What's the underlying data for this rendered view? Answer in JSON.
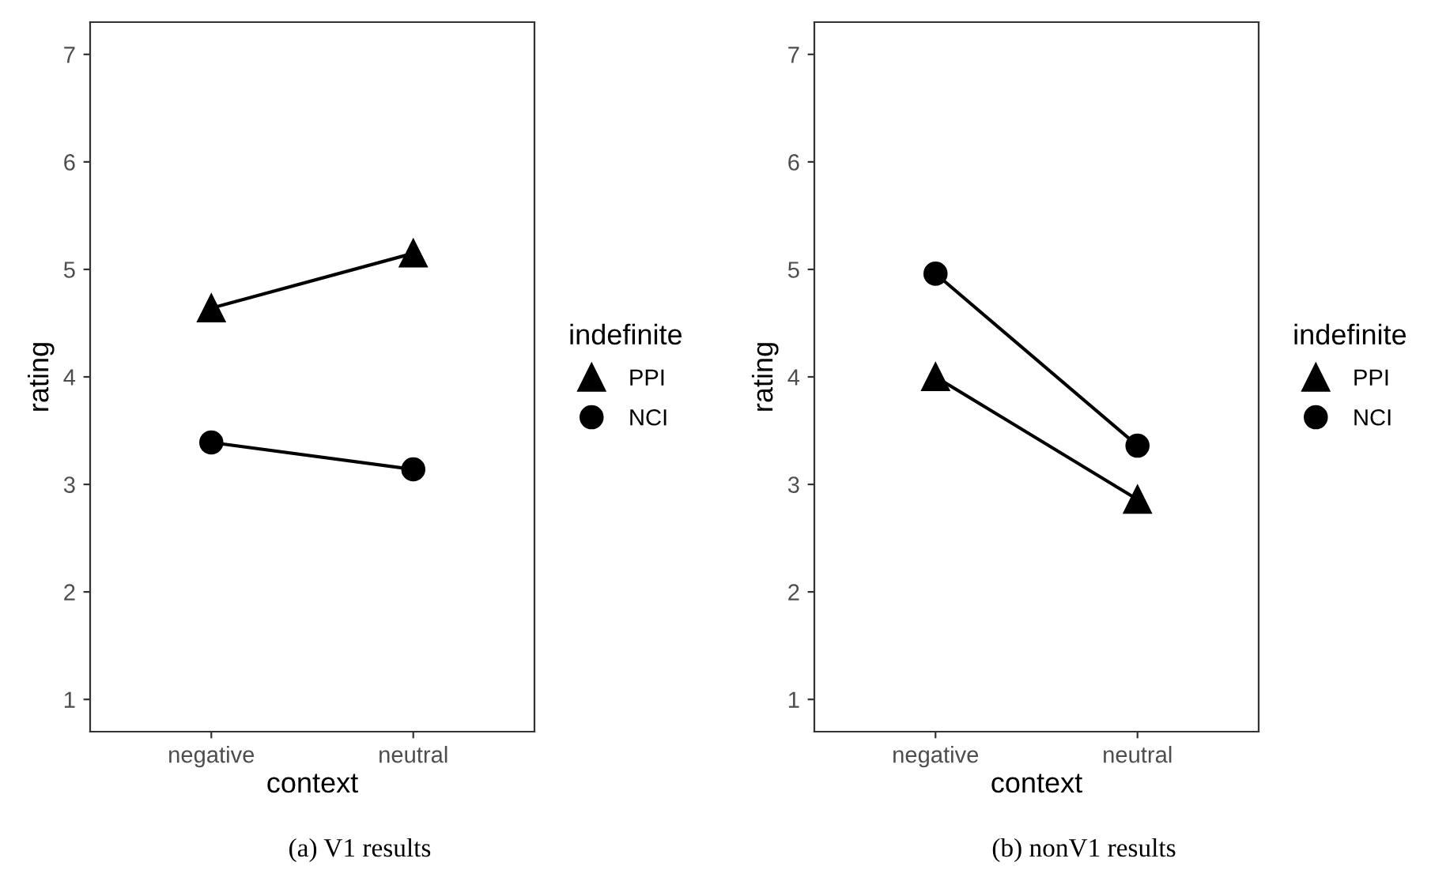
{
  "chart_data": [
    {
      "type": "line",
      "xlabel": "context",
      "ylabel": "rating",
      "legend_title": "indefinite",
      "legend": "right",
      "categories": [
        "negative",
        "neutral"
      ],
      "ylim": [
        0.7,
        7.3
      ],
      "yticks": [
        1,
        2,
        3,
        4,
        5,
        6,
        7
      ],
      "grid": false,
      "series": [
        {
          "name": "PPI",
          "color": "#000000",
          "marker": "triangle",
          "values": [
            4.64,
            5.15
          ]
        },
        {
          "name": "NCI",
          "color": "#000000",
          "marker": "circle",
          "values": [
            3.39,
            3.14
          ]
        }
      ],
      "annotations": [
        "(a) V1 results"
      ]
    },
    {
      "type": "line",
      "xlabel": "context",
      "ylabel": "rating",
      "legend_title": "indefinite",
      "legend": "right",
      "categories": [
        "negative",
        "neutral"
      ],
      "ylim": [
        0.7,
        7.3
      ],
      "yticks": [
        1,
        2,
        3,
        4,
        5,
        6,
        7
      ],
      "grid": false,
      "series": [
        {
          "name": "PPI",
          "color": "#000000",
          "marker": "triangle",
          "values": [
            4.0,
            2.86
          ]
        },
        {
          "name": "NCI",
          "color": "#000000",
          "marker": "circle",
          "values": [
            4.96,
            3.36
          ]
        }
      ],
      "annotations": [
        "(b) nonV1 results"
      ]
    }
  ]
}
